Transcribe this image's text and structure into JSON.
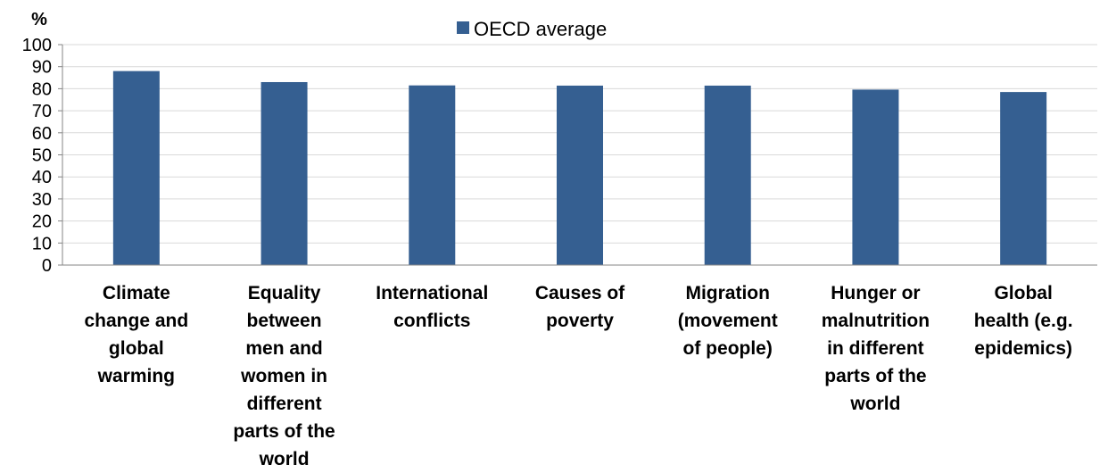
{
  "chart_data": {
    "type": "bar",
    "ylabel": "%",
    "ylim": [
      0,
      100
    ],
    "yticks": [
      0,
      10,
      20,
      30,
      40,
      50,
      60,
      70,
      80,
      90,
      100
    ],
    "categories": [
      [
        "Climate",
        "change and",
        "global",
        "warming"
      ],
      [
        "Equality",
        "between",
        "men and",
        "women in",
        "different",
        "parts of the",
        "world"
      ],
      [
        "International",
        "conflicts"
      ],
      [
        "Causes of",
        "poverty"
      ],
      [
        "Migration",
        "(movement",
        "of people)"
      ],
      [
        "Hunger or",
        "malnutrition",
        "in different",
        "parts of the",
        "world"
      ],
      [
        "Global",
        "health (e.g.",
        "epidemics)"
      ]
    ],
    "series": [
      {
        "name": "OECD average",
        "values": [
          88,
          83,
          81.5,
          81.4,
          81.4,
          79.6,
          78.5
        ]
      }
    ],
    "colors": {
      "bar": "#355f91",
      "axis": "#868686",
      "gridline": "#d9d9d9"
    },
    "grid": true,
    "legend": "top-center"
  }
}
